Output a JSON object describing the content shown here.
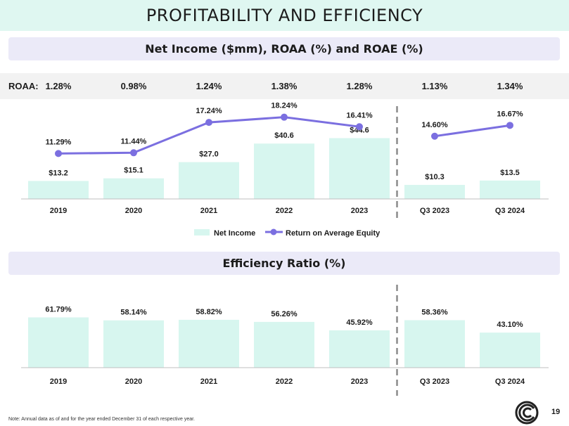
{
  "page": {
    "title": "PROFITABILITY AND EFFICIENCY",
    "page_number": "19",
    "footnote": "Note: Annual data as of and for the year ended December 31 of each respective year."
  },
  "colors": {
    "bar": "#d7f6ef",
    "line": "#7b6fe0",
    "divider": "#8c8c8c",
    "title_band": "#dff7f1",
    "section_band": "#ebeaf8",
    "logo": "#222222"
  },
  "icons": {
    "logo": "company-logo-icon"
  },
  "roaa": {
    "label": "ROAA:",
    "values": [
      "1.28%",
      "0.98%",
      "1.24%",
      "1.38%",
      "1.28%",
      "1.13%",
      "1.34%"
    ]
  },
  "chart_data": [
    {
      "type": "bar",
      "title": "Net Income ($mm), ROAA (%) and ROAE (%)",
      "categories": [
        "2019",
        "2020",
        "2021",
        "2022",
        "2023",
        "Q3 2023",
        "Q3 2024"
      ],
      "ylim": [
        0,
        50
      ],
      "divider_after_index": 4,
      "series": [
        {
          "name": "Net Income",
          "kind": "bar",
          "values": [
            13.2,
            15.1,
            27.0,
            40.6,
            44.6,
            10.3,
            13.5
          ],
          "labels": [
            "$13.2",
            "$15.1",
            "$27.0",
            "$40.6",
            "$44.6",
            "$10.3",
            "$13.5"
          ]
        },
        {
          "name": "Return on Average Equity",
          "kind": "line",
          "segments": [
            [
              0,
              4
            ],
            [
              5,
              6
            ]
          ],
          "ylim": [
            10,
            19
          ],
          "values": [
            11.29,
            11.44,
            17.24,
            18.24,
            16.41,
            14.6,
            16.67
          ],
          "labels": [
            "11.29%",
            "11.44%",
            "17.24%",
            "18.24%",
            "16.41%",
            "14.60%",
            "16.67%"
          ]
        }
      ],
      "legend": [
        "Net Income",
        "Return on Average Equity"
      ]
    },
    {
      "type": "bar",
      "title": "Efficiency Ratio (%)",
      "categories": [
        "2019",
        "2020",
        "2021",
        "2022",
        "2023",
        "Q3 2023",
        "Q3 2024"
      ],
      "ylim": [
        0,
        70
      ],
      "divider_after_index": 4,
      "values": [
        61.79,
        58.14,
        58.82,
        56.26,
        45.92,
        58.36,
        43.1
      ],
      "labels": [
        "61.79%",
        "58.14%",
        "58.82%",
        "56.26%",
        "45.92%",
        "58.36%",
        "43.10%"
      ]
    }
  ]
}
